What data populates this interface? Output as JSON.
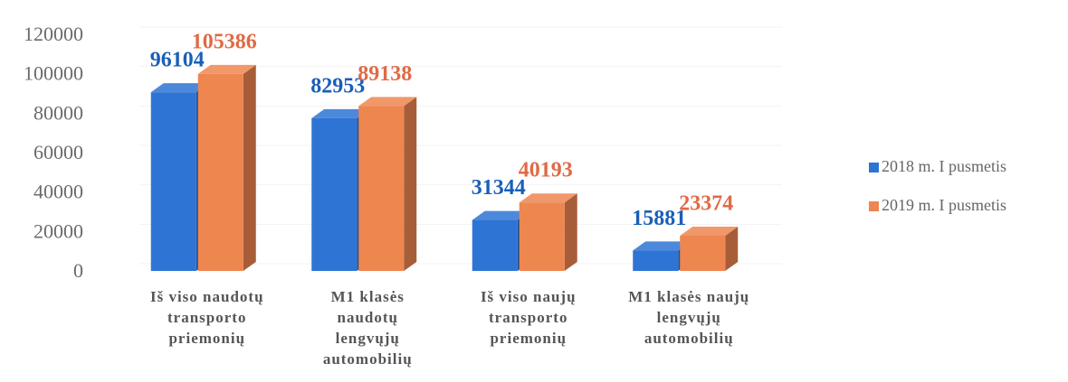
{
  "chart_data": {
    "type": "bar3d",
    "categories": [
      [
        "Iš viso naudotų",
        "transporto",
        "priemonių"
      ],
      [
        "M1 klasės",
        "naudotų",
        "lengvųjų",
        "automobilių"
      ],
      [
        "Iš viso naujų",
        "transporto",
        "priemonių"
      ],
      [
        "M1 klasės naujų",
        "lengvųjų",
        "automobilių"
      ]
    ],
    "series": [
      {
        "name": "2018 m. I pusmetis",
        "color": "#2e74d4",
        "label_color": "#1a5fb8",
        "values": [
          96104,
          82953,
          31344,
          15881
        ]
      },
      {
        "name": "2019 m. I pusmetis",
        "color": "#ee8650",
        "label_color": "#e06a45",
        "values": [
          105386,
          89138,
          40193,
          23374
        ]
      }
    ],
    "ylim": [
      0,
      120000
    ],
    "yticks": [
      0,
      20000,
      40000,
      60000,
      80000,
      100000,
      120000
    ],
    "grid": true,
    "legend": "right"
  }
}
